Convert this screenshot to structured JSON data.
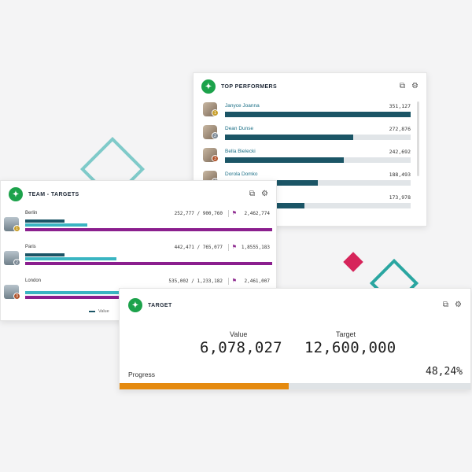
{
  "colors": {
    "background": "#f4f4f5",
    "brand_green": "#1ca24b",
    "bar_dark": "#1b5566",
    "bar_teal": "#3ab5c2",
    "bar_purple": "#8b1f8e",
    "progress_orange": "#e58a0f",
    "accent_red": "#d6245a"
  },
  "top_performers": {
    "title": "TOP PERFORMERS",
    "icons": [
      "share-icon",
      "gear-icon"
    ],
    "rows": [
      {
        "name": "Janyce Joanna",
        "value": "351,127",
        "rank": "1",
        "progress": 1.0
      },
      {
        "name": "Dean Dunse",
        "value": "272,876",
        "rank": "2",
        "progress": 0.69
      },
      {
        "name": "Bella Bielecki",
        "value": "242,692",
        "rank": "3",
        "progress": 0.64
      },
      {
        "name": "Dorola Domko",
        "value": "188,493",
        "rank": "4",
        "progress": 0.5
      },
      {
        "name": "",
        "value": "173,978",
        "rank": "",
        "progress": 0.43
      }
    ]
  },
  "team_targets": {
    "title": "TEAM - TARGETS",
    "icons": [
      "share-icon",
      "gear-icon"
    ],
    "rows": [
      {
        "city": "Berlin",
        "stats": "252,777 / 900,760",
        "target": "2,462,774",
        "rank": "1",
        "rank_color": "#c9a02e",
        "value_pct": 0.16,
        "target_pct": 0.25
      },
      {
        "city": "Paris",
        "stats": "442,471 / 765,077",
        "target": "1,8555,183",
        "rank": "2",
        "rank_color": "#7d8a96",
        "value_pct": 0.16,
        "target_pct": 0.37
      },
      {
        "city": "London",
        "stats": "535,002 / 1,233,182",
        "target": "2,461,007",
        "rank": "3",
        "rank_color": "#b0522a",
        "value_pct": 0.0,
        "target_pct": 0.55
      }
    ],
    "legend": "Value"
  },
  "target": {
    "title": "TARGET",
    "icons": [
      "share-icon",
      "gear-icon"
    ],
    "value_label": "Value",
    "value": "6,078,027",
    "target_label": "Target",
    "target_value": "12,600,000",
    "progress_label": "Progress",
    "progress_text": "48,24%",
    "progress_fraction": 0.4824
  }
}
